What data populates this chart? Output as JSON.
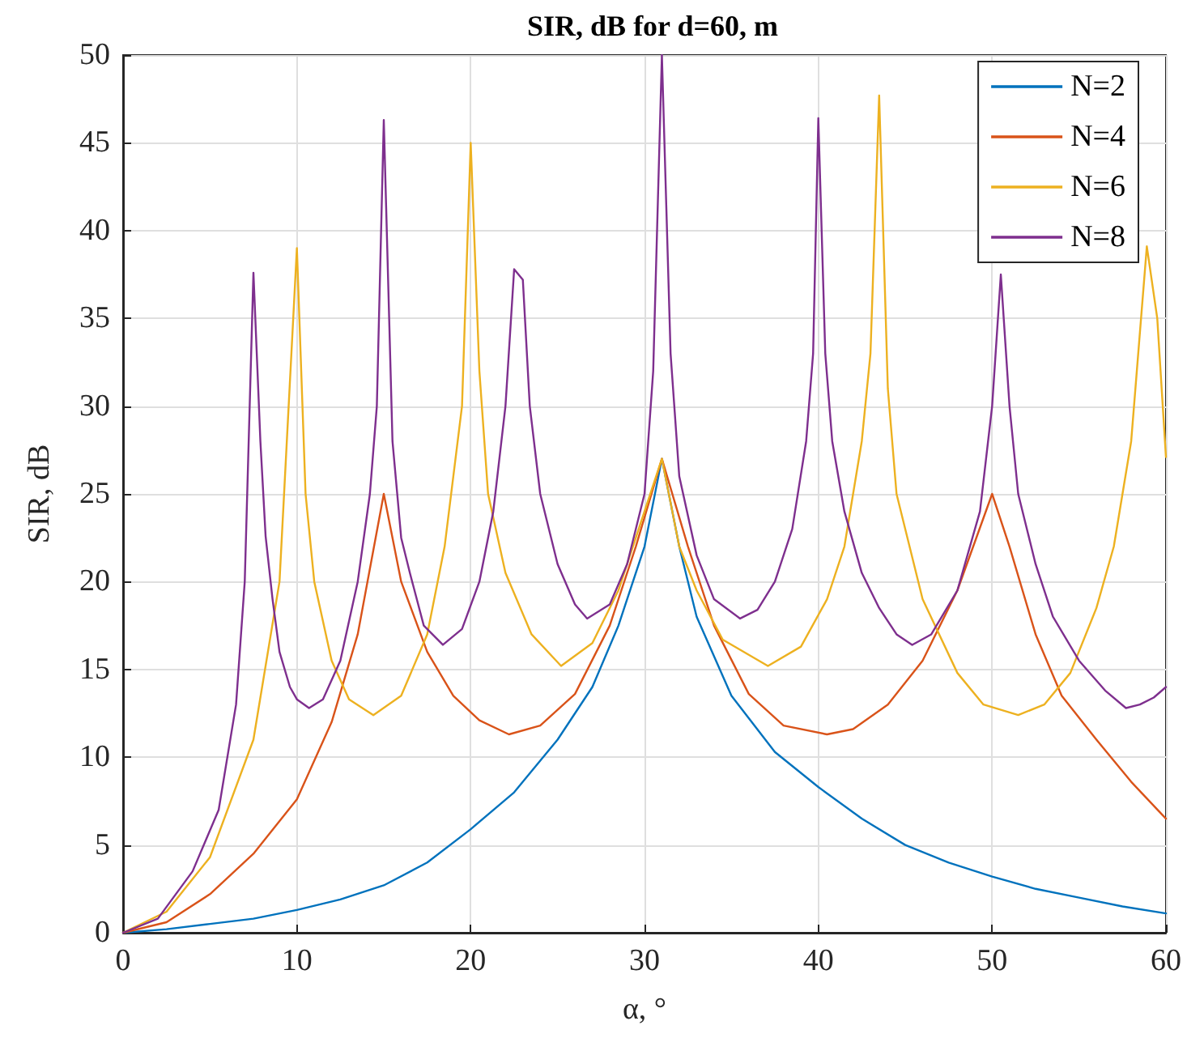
{
  "chart_data": {
    "type": "line",
    "title": "SIR, dB for d=60, m",
    "xlabel": "α, °",
    "ylabel": "SIR, dB",
    "xlim": [
      0,
      60
    ],
    "xticks": [
      0,
      10,
      20,
      30,
      40,
      50,
      60
    ],
    "ylim": [
      0,
      50
    ],
    "yticks": [
      0,
      5,
      10,
      15,
      20,
      25,
      30,
      35,
      40,
      45,
      50
    ],
    "grid": true,
    "legend": "top right",
    "marker": "none",
    "line_style": "solid",
    "series": [
      {
        "name": "N=2",
        "color": "#0072bd",
        "x": [
          0,
          2.5,
          5,
          7.5,
          10,
          12.5,
          15,
          17.5,
          20,
          22.5,
          25,
          27,
          28.5,
          30,
          31,
          32,
          33,
          35,
          37.5,
          40,
          42.5,
          45,
          47.5,
          50,
          52.5,
          55,
          57.5,
          60
        ],
        "values": [
          0,
          0.2,
          0.5,
          0.8,
          1.3,
          1.9,
          2.7,
          4,
          5.9,
          8,
          11,
          14,
          17.5,
          22,
          27,
          22,
          18,
          13.5,
          10.3,
          8.3,
          6.5,
          5,
          4,
          3.2,
          2.5,
          2,
          1.5,
          1.1
        ]
      },
      {
        "name": "N=4",
        "color": "#d95319",
        "x": [
          0,
          2.5,
          5,
          7.5,
          10,
          12,
          13.5,
          15,
          16,
          17.5,
          19,
          20.5,
          22.2,
          24,
          26,
          28,
          29.5,
          31,
          32.5,
          34,
          36,
          38,
          40.5,
          42,
          44,
          46,
          48,
          50,
          51,
          52.5,
          54,
          56,
          58,
          60
        ],
        "values": [
          0,
          0.6,
          2.2,
          4.5,
          7.6,
          12,
          17,
          25,
          20,
          16,
          13.5,
          12.1,
          11.3,
          11.8,
          13.6,
          17.5,
          22,
          27,
          22,
          17.5,
          13.6,
          11.8,
          11.3,
          11.6,
          13,
          15.5,
          19.5,
          25,
          22,
          17,
          13.5,
          11,
          8.6,
          6.5
        ]
      },
      {
        "name": "N=6",
        "color": "#edb120",
        "x": [
          0,
          2.5,
          5,
          7.5,
          9,
          10,
          10.5,
          11,
          12,
          13,
          14.4,
          16,
          17.5,
          18.5,
          19.5,
          20,
          20.5,
          21,
          22,
          23.5,
          25.2,
          27,
          28.5,
          30,
          31,
          32,
          33,
          34.5,
          37.1,
          39,
          40.5,
          41.5,
          42.5,
          43,
          43.5,
          44,
          44.5,
          46,
          48,
          49.5,
          51.5,
          53,
          54.5,
          56,
          57,
          58,
          58.9,
          59.5,
          60
        ],
        "values": [
          0,
          1.2,
          4.3,
          11,
          20,
          39,
          25,
          20,
          15.5,
          13.3,
          12.4,
          13.5,
          17,
          22,
          30,
          45,
          32,
          25,
          20.5,
          17,
          15.2,
          16.5,
          19.5,
          24,
          27,
          22,
          19.5,
          16.7,
          15.2,
          16.3,
          19,
          22,
          28,
          33,
          47.7,
          31,
          25,
          19,
          14.8,
          13,
          12.4,
          13,
          14.8,
          18.5,
          22,
          28,
          39.1,
          35,
          27.1
        ]
      },
      {
        "name": "N=8",
        "color": "#7e2f8e",
        "x": [
          0,
          2,
          4,
          5.5,
          6.5,
          7,
          7.5,
          7.9,
          8.2,
          8.6,
          9,
          9.6,
          10,
          10.7,
          11.5,
          12.5,
          13.5,
          14.2,
          14.6,
          15,
          15.5,
          16,
          16.5,
          17.3,
          18.4,
          19.5,
          20.5,
          21.3,
          22,
          22.5,
          23,
          23.4,
          24,
          25,
          26,
          26.7,
          28,
          29,
          30,
          30.5,
          31,
          31.5,
          32,
          33,
          34,
          35.5,
          36.5,
          37.5,
          38.5,
          39.3,
          39.7,
          40,
          40.4,
          40.8,
          41.5,
          42.5,
          43.5,
          44.5,
          45.4,
          46.5,
          48,
          49.3,
          50,
          50.5,
          51,
          51.5,
          52.5,
          53.5,
          55,
          56.5,
          57.7,
          58.5,
          59.3,
          60
        ],
        "values": [
          0,
          0.8,
          3.5,
          7,
          13,
          20,
          37.6,
          28,
          22.6,
          19,
          16,
          14,
          13.3,
          12.8,
          13.3,
          15.5,
          20,
          25,
          30,
          46.3,
          28,
          22.5,
          20.5,
          17.5,
          16.4,
          17.3,
          20,
          24,
          30,
          37.8,
          37.2,
          30,
          25,
          21,
          18.7,
          17.9,
          18.7,
          21,
          25,
          32,
          50,
          33,
          26,
          21.5,
          19,
          17.9,
          18.4,
          20,
          23,
          28,
          33,
          46.4,
          33,
          28,
          24,
          20.5,
          18.5,
          17,
          16.4,
          17,
          19.5,
          24,
          30,
          37.5,
          30,
          25,
          21,
          18,
          15.5,
          13.8,
          12.8,
          13,
          13.4,
          14
        ]
      }
    ]
  }
}
